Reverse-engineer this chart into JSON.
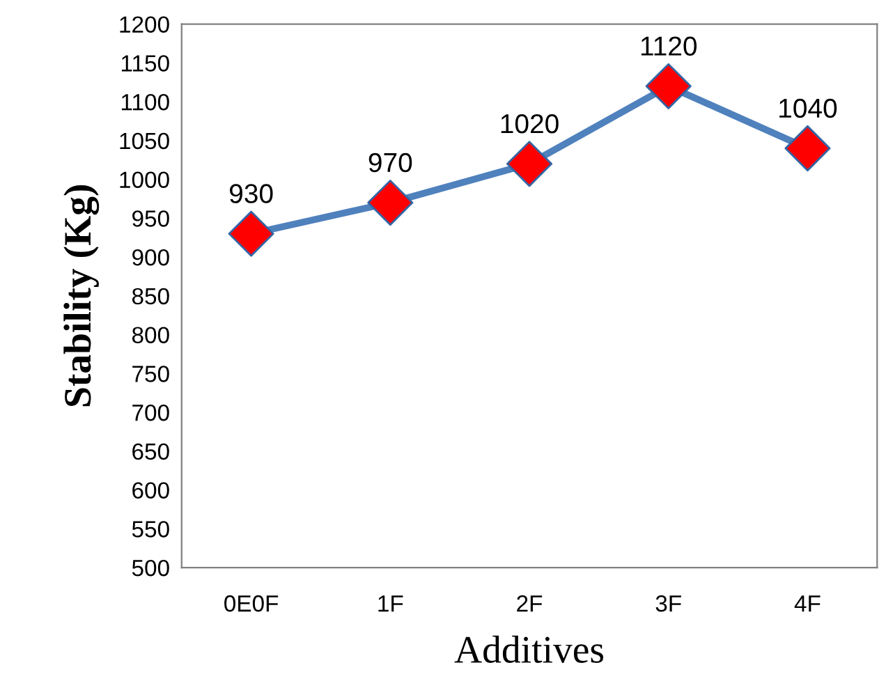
{
  "chart_data": {
    "type": "line",
    "xlabel": "Additives",
    "ylabel": "Stability (Kg)",
    "categories": [
      "0E0F",
      "1F",
      "2F",
      "3F",
      "4F"
    ],
    "series": [
      {
        "color": "#4f81bd",
        "values": [
          930,
          970,
          1020,
          1120,
          1040
        ]
      }
    ],
    "marker": "diamond",
    "data_labels": true,
    "ylim": [
      500,
      1200
    ],
    "yticks": [
      500,
      550,
      600,
      650,
      700,
      750,
      800,
      850,
      900,
      950,
      1000,
      1050,
      1100,
      1150,
      1200
    ],
    "grid": false,
    "legend": false
  }
}
